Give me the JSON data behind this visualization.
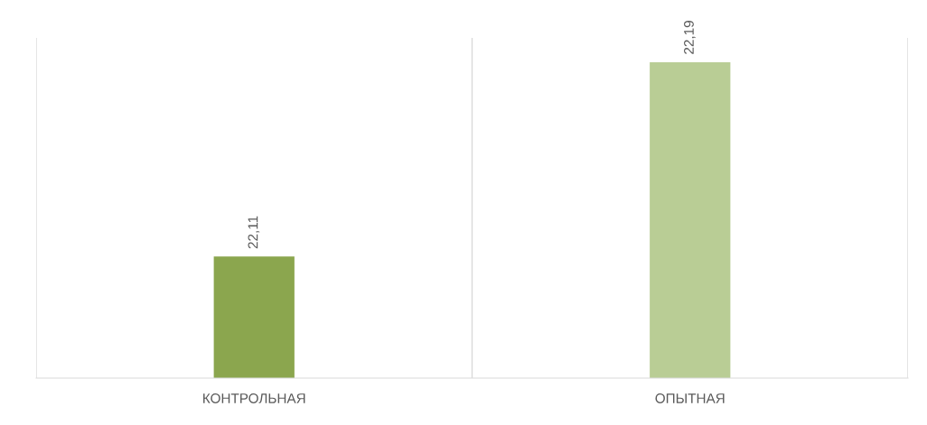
{
  "chart_data": {
    "type": "bar",
    "categories": [
      "КОНТРОЛЬНАЯ",
      "ОПЫТНАЯ"
    ],
    "values": [
      22.11,
      22.19
    ],
    "colors": [
      "#8ba64e",
      "#b9cd95"
    ],
    "value_labels": [
      "22,11",
      "22,19"
    ],
    "ylim": [
      22.06,
      22.2
    ],
    "tick_labels": "x",
    "grid": "x"
  }
}
